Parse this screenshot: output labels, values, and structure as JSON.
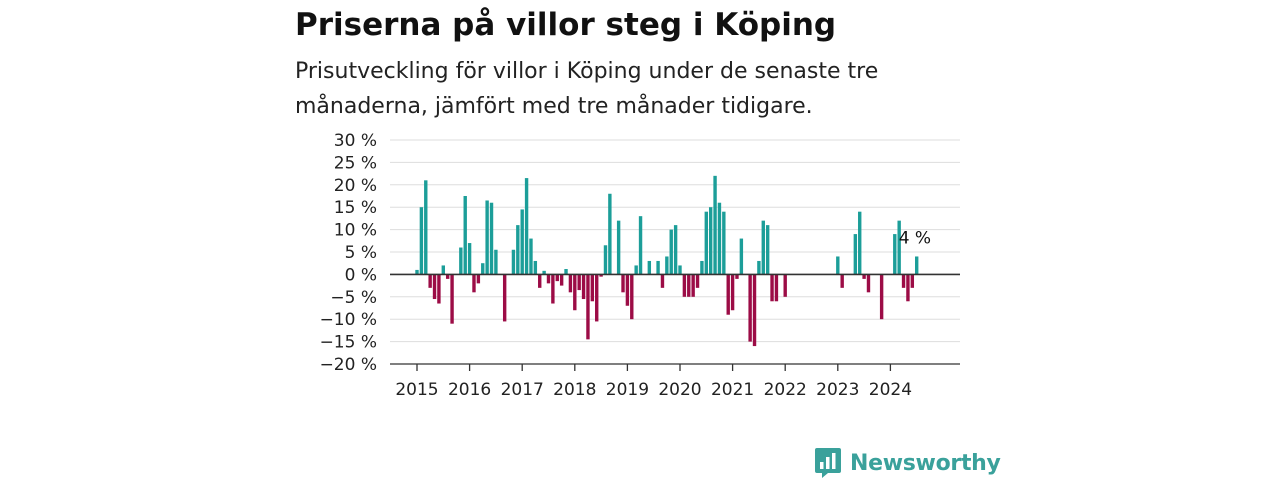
{
  "header": {
    "title": "Priserna på villor steg i Köping",
    "subtitle": "Prisutveckling för villor i Köping under de senaste tre månaderna, jämfört med tre månader tidigare."
  },
  "brand": {
    "name": "Newsworthy",
    "icon": "newsworthy-logo-icon",
    "color": "#3aa19b"
  },
  "chart_data": {
    "type": "bar",
    "title": "Priserna på villor steg i Köping",
    "subtitle": "Prisutveckling för villor i Köping under de senaste tre månaderna, jämfört med tre månader tidigare.",
    "xlabel": "",
    "ylabel": "",
    "ylim": [
      -20,
      30
    ],
    "yticks": [
      -20,
      -15,
      -10,
      -5,
      0,
      5,
      10,
      15,
      20,
      25,
      30
    ],
    "ytick_labels": [
      "−20 %",
      "−15 %",
      "−10 %",
      "−5 %",
      "0 %",
      "5 %",
      "10 %",
      "15 %",
      "20 %",
      "25 %",
      "30 %"
    ],
    "x_tick_labels": [
      "2015",
      "2016",
      "2017",
      "2018",
      "2019",
      "2020",
      "2021",
      "2022",
      "2023",
      "2024"
    ],
    "x_start_year": 2015,
    "grid": true,
    "colors": {
      "positive": "#1c9e99",
      "negative": "#9c0c46",
      "grid": "#dddddd",
      "axis": "#333333"
    },
    "annotation": {
      "label": "4 %",
      "value": 4
    },
    "values": [
      1,
      15,
      21,
      -3,
      -5.5,
      -6.5,
      2,
      -1,
      -11,
      0,
      6,
      17.5,
      7,
      -4,
      -2,
      2.5,
      16.5,
      16,
      5.5,
      0,
      -10.5,
      0,
      5.5,
      11,
      14.5,
      21.5,
      8,
      3,
      -3,
      0.8,
      -2,
      -6.5,
      -1.5,
      -2.5,
      1.2,
      -4,
      -8,
      -3.5,
      -5.5,
      -14.5,
      -6,
      -10.5,
      -0.5,
      6.5,
      18,
      0,
      12,
      -4,
      -7,
      -10,
      2,
      13,
      0,
      3,
      0,
      3,
      -3,
      4,
      10,
      11,
      2,
      -5,
      -5,
      -5,
      -3,
      3,
      14,
      15,
      22,
      16,
      14,
      -9,
      -8,
      -1,
      8,
      0,
      -15,
      -16,
      3,
      12,
      11,
      -6,
      -6,
      0,
      -5,
      0,
      0,
      0,
      0,
      0,
      0,
      0,
      0,
      0,
      0,
      0,
      4,
      -3,
      0,
      0,
      9,
      14,
      -1,
      -4,
      0,
      0,
      -10,
      0,
      0,
      9,
      12,
      -3,
      -6,
      -3,
      4
    ]
  }
}
